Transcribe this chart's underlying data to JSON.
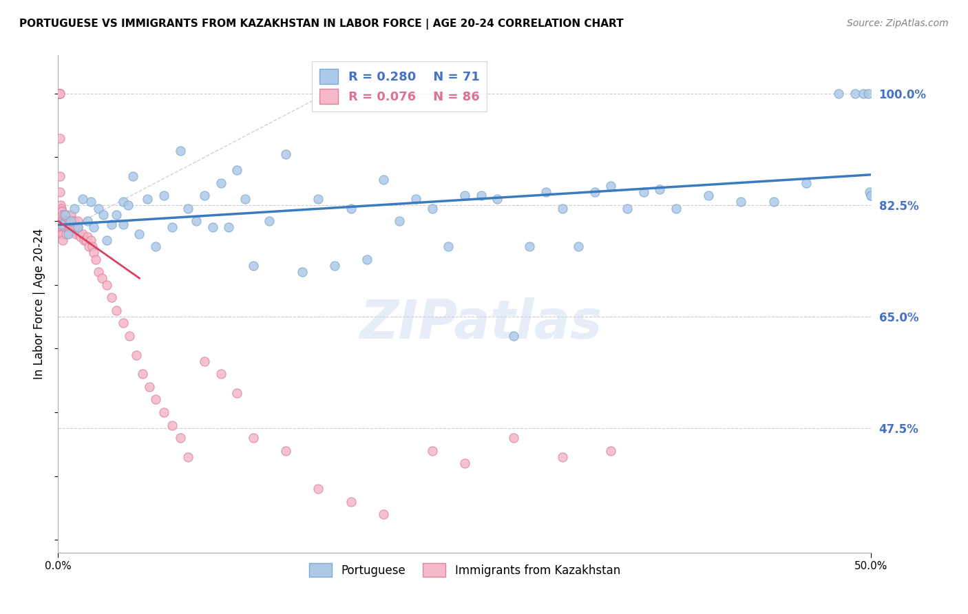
{
  "title": "PORTUGUESE VS IMMIGRANTS FROM KAZAKHSTAN IN LABOR FORCE | AGE 20-24 CORRELATION CHART",
  "source": "Source: ZipAtlas.com",
  "ylabel": "In Labor Force | Age 20-24",
  "xlim": [
    0.0,
    0.5
  ],
  "ylim": [
    0.28,
    1.06
  ],
  "yticks": [
    0.475,
    0.65,
    0.825,
    1.0
  ],
  "ytick_labels": [
    "47.5%",
    "65.0%",
    "82.5%",
    "100.0%"
  ],
  "blue_R": 0.28,
  "blue_N": 71,
  "pink_R": 0.076,
  "pink_N": 86,
  "blue_color": "#aec8e8",
  "pink_color": "#f4b8c8",
  "blue_edge_color": "#7aaad0",
  "pink_edge_color": "#e080a0",
  "blue_line_color": "#3a7abf",
  "pink_line_color": "#d94060",
  "diag_color": "#d0d0d0",
  "watermark": "ZIPatlas",
  "legend_label_blue": "Portuguese",
  "legend_label_pink": "Immigrants from Kazakhstan",
  "blue_x": [
    0.002,
    0.004,
    0.006,
    0.008,
    0.01,
    0.012,
    0.015,
    0.018,
    0.02,
    0.022,
    0.025,
    0.028,
    0.03,
    0.033,
    0.036,
    0.04,
    0.04,
    0.043,
    0.046,
    0.05,
    0.055,
    0.06,
    0.065,
    0.07,
    0.075,
    0.08,
    0.085,
    0.09,
    0.095,
    0.1,
    0.105,
    0.11,
    0.115,
    0.12,
    0.13,
    0.14,
    0.15,
    0.16,
    0.17,
    0.18,
    0.19,
    0.2,
    0.21,
    0.22,
    0.23,
    0.24,
    0.25,
    0.26,
    0.27,
    0.28,
    0.29,
    0.3,
    0.31,
    0.32,
    0.33,
    0.34,
    0.35,
    0.36,
    0.37,
    0.38,
    0.4,
    0.42,
    0.44,
    0.46,
    0.48,
    0.49,
    0.495,
    0.498,
    0.499,
    0.5,
    0.5
  ],
  "blue_y": [
    0.795,
    0.81,
    0.78,
    0.8,
    0.82,
    0.79,
    0.835,
    0.8,
    0.83,
    0.79,
    0.82,
    0.81,
    0.77,
    0.795,
    0.81,
    0.83,
    0.795,
    0.825,
    0.87,
    0.78,
    0.835,
    0.76,
    0.84,
    0.79,
    0.91,
    0.82,
    0.8,
    0.84,
    0.79,
    0.86,
    0.79,
    0.88,
    0.835,
    0.73,
    0.8,
    0.905,
    0.72,
    0.835,
    0.73,
    0.82,
    0.74,
    0.865,
    0.8,
    0.835,
    0.82,
    0.76,
    0.84,
    0.84,
    0.835,
    0.62,
    0.76,
    0.845,
    0.82,
    0.76,
    0.845,
    0.855,
    0.82,
    0.845,
    0.85,
    0.82,
    0.84,
    0.83,
    0.83,
    0.86,
    1.0,
    1.0,
    1.0,
    1.0,
    0.845,
    0.84,
    0.84
  ],
  "pink_x": [
    0.0005,
    0.0005,
    0.0005,
    0.0008,
    0.0008,
    0.001,
    0.001,
    0.001,
    0.001,
    0.001,
    0.001,
    0.001,
    0.001,
    0.0015,
    0.0015,
    0.002,
    0.002,
    0.002,
    0.002,
    0.002,
    0.0025,
    0.003,
    0.003,
    0.003,
    0.003,
    0.003,
    0.004,
    0.004,
    0.004,
    0.005,
    0.005,
    0.005,
    0.005,
    0.006,
    0.006,
    0.007,
    0.007,
    0.008,
    0.008,
    0.009,
    0.009,
    0.01,
    0.01,
    0.011,
    0.011,
    0.012,
    0.012,
    0.013,
    0.014,
    0.015,
    0.016,
    0.017,
    0.018,
    0.019,
    0.02,
    0.021,
    0.022,
    0.023,
    0.025,
    0.027,
    0.03,
    0.033,
    0.036,
    0.04,
    0.044,
    0.048,
    0.052,
    0.056,
    0.06,
    0.065,
    0.07,
    0.075,
    0.08,
    0.09,
    0.1,
    0.11,
    0.12,
    0.14,
    0.16,
    0.18,
    0.2,
    0.23,
    0.25,
    0.28,
    0.31,
    0.34
  ],
  "pink_y": [
    1.0,
    1.0,
    1.0,
    1.0,
    1.0,
    1.0,
    1.0,
    0.93,
    0.87,
    0.845,
    0.82,
    0.81,
    0.8,
    0.825,
    0.81,
    0.82,
    0.815,
    0.8,
    0.79,
    0.78,
    0.815,
    0.81,
    0.8,
    0.79,
    0.78,
    0.77,
    0.81,
    0.8,
    0.79,
    0.81,
    0.8,
    0.79,
    0.78,
    0.8,
    0.79,
    0.8,
    0.79,
    0.81,
    0.79,
    0.8,
    0.79,
    0.8,
    0.79,
    0.79,
    0.78,
    0.8,
    0.79,
    0.78,
    0.775,
    0.78,
    0.77,
    0.77,
    0.775,
    0.76,
    0.77,
    0.76,
    0.75,
    0.74,
    0.72,
    0.71,
    0.7,
    0.68,
    0.66,
    0.64,
    0.62,
    0.59,
    0.56,
    0.54,
    0.52,
    0.5,
    0.48,
    0.46,
    0.43,
    0.58,
    0.56,
    0.53,
    0.46,
    0.44,
    0.38,
    0.36,
    0.34,
    0.44,
    0.42,
    0.46,
    0.43,
    0.44
  ]
}
